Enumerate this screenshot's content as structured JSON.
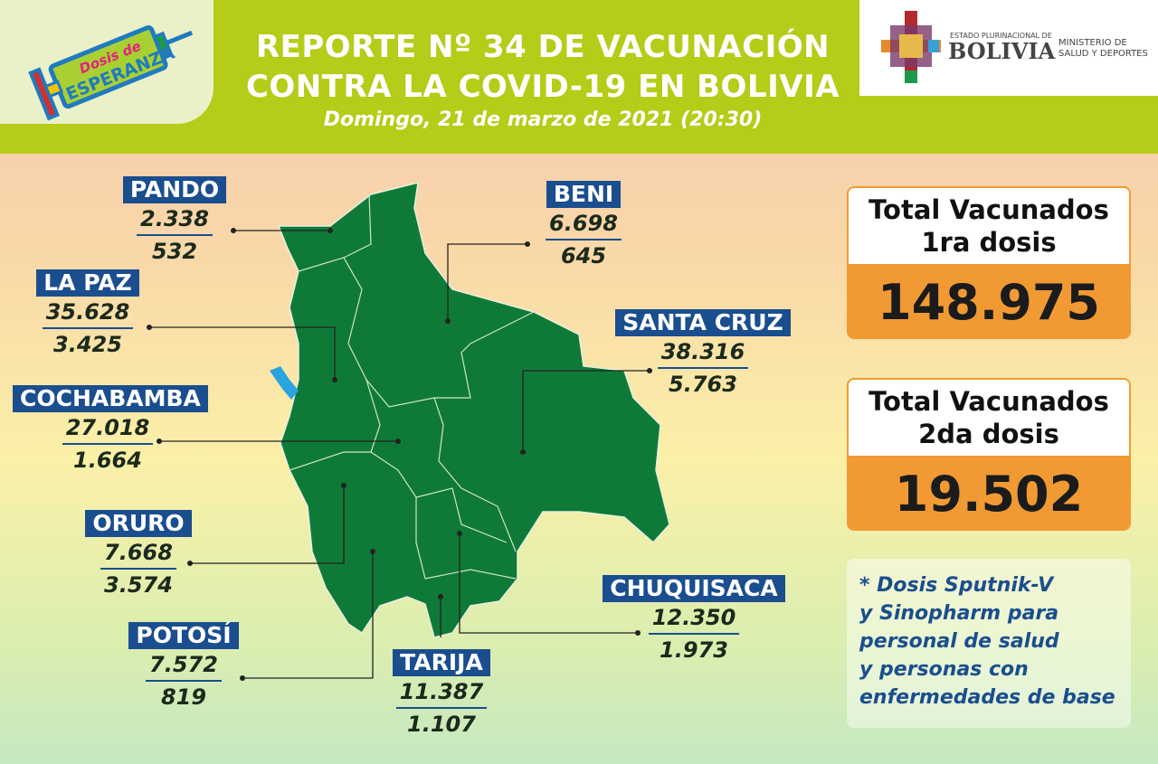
{
  "header": {
    "title_line1": "REPORTE Nº 34 DE VACUNACIÓN",
    "title_line2": "CONTRA LA COVID-19 EN BOLIVIA",
    "subtitle": "Domingo, 21 de marzo de 2021 (20:30)"
  },
  "campaign_logo": {
    "line1": "Dosis de",
    "line2": "ESPERANZA"
  },
  "government": {
    "small": "ESTADO PLURINACIONAL DE",
    "country": "BOLIVIA",
    "ministry_line1": "MINISTERIO DE",
    "ministry_line2": "SALUD Y DEPORTES"
  },
  "departments": [
    {
      "name": "PANDO",
      "first": "2.338",
      "second": "532"
    },
    {
      "name": "BENI",
      "first": "6.698",
      "second": "645"
    },
    {
      "name": "LA PAZ",
      "first": "35.628",
      "second": "3.425"
    },
    {
      "name": "SANTA CRUZ",
      "first": "38.316",
      "second": "5.763"
    },
    {
      "name": "COCHABAMBA",
      "first": "27.018",
      "second": "1.664"
    },
    {
      "name": "ORURO",
      "first": "7.668",
      "second": "3.574"
    },
    {
      "name": "POTOSÍ",
      "first": "7.572",
      "second": "819"
    },
    {
      "name": "TARIJA",
      "first": "11.387",
      "second": "1.107"
    },
    {
      "name": "CHUQUISACA",
      "first": "12.350",
      "second": "1.973"
    }
  ],
  "totals": {
    "first_label_1": "Total Vacunados",
    "first_label_2": "1ra dosis",
    "first_value": "148.975",
    "second_label_1": "Total Vacunados",
    "second_label_2": "2da dosis",
    "second_value": "19.502"
  },
  "note": {
    "line1": "* Dosis Sputnik-V",
    "line2": "y Sinopharm para",
    "line3": "personal de salud",
    "line4": "y personas con",
    "line5": "enfermedades de base"
  },
  "colors": {
    "header": "#b5cc18",
    "map": "#0f7a38",
    "label": "#1a4e8e",
    "accent": "#f19a33"
  }
}
